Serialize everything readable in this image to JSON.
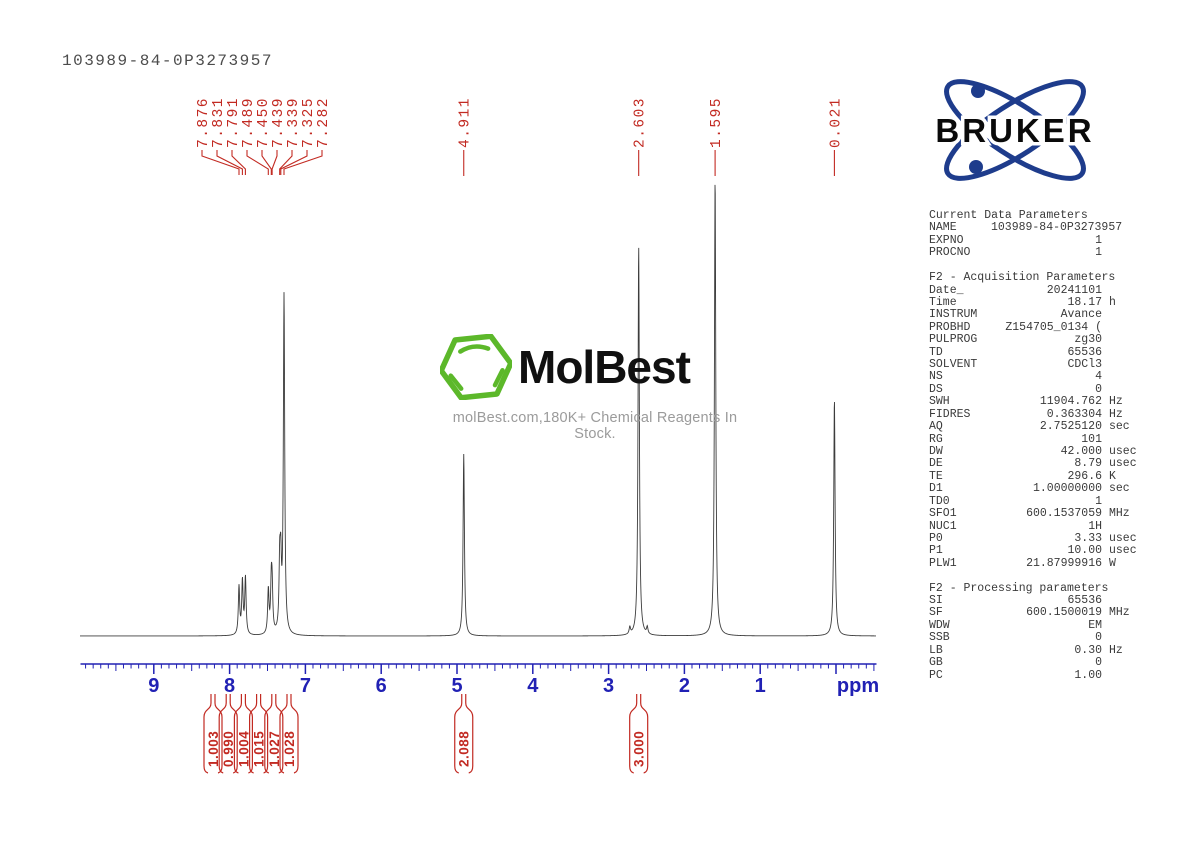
{
  "page": {
    "title": "103989-84-0P3273957"
  },
  "colors": {
    "peak_red": "#c22a22",
    "axis_blue": "#2121b4",
    "trace_gray": "#3c3c3c",
    "bruker_blue": "#1e3c8c",
    "molbest_green": "#5cb82a"
  },
  "watermark": {
    "brand": "MolBest",
    "tagline": "molBest.com,180K+ Chemical Reagents In Stock."
  },
  "bruker": {
    "label": "BRUKER"
  },
  "params": {
    "sections": [
      {
        "heading": "Current Data Parameters",
        "rows": [
          [
            "NAME",
            "103989-84-0P3273957",
            ""
          ],
          [
            "EXPNO",
            "1",
            ""
          ],
          [
            "PROCNO",
            "1",
            ""
          ]
        ]
      },
      {
        "heading": "F2 - Acquisition Parameters",
        "rows": [
          [
            "Date_",
            "20241101",
            ""
          ],
          [
            "Time",
            "18.17",
            "h"
          ],
          [
            "INSTRUM",
            "Avance",
            ""
          ],
          [
            "PROBHD",
            "Z154705_0134 (",
            ""
          ],
          [
            "PULPROG",
            "zg30",
            ""
          ],
          [
            "TD",
            "65536",
            ""
          ],
          [
            "SOLVENT",
            "CDCl3",
            ""
          ],
          [
            "NS",
            "4",
            ""
          ],
          [
            "DS",
            "0",
            ""
          ],
          [
            "SWH",
            "11904.762",
            "Hz"
          ],
          [
            "FIDRES",
            "0.363304",
            "Hz"
          ],
          [
            "AQ",
            "2.7525120",
            "sec"
          ],
          [
            "RG",
            "101",
            ""
          ],
          [
            "DW",
            "42.000",
            "usec"
          ],
          [
            "DE",
            "8.79",
            "usec"
          ],
          [
            "TE",
            "296.6",
            "K"
          ],
          [
            "D1",
            "1.00000000",
            "sec"
          ],
          [
            "TD0",
            "1",
            ""
          ],
          [
            "SFO1",
            "600.1537059",
            "MHz"
          ],
          [
            "NUC1",
            "1H",
            ""
          ],
          [
            "P0",
            "3.33",
            "usec"
          ],
          [
            "P1",
            "10.00",
            "usec"
          ],
          [
            "PLW1",
            "21.87999916",
            "W"
          ]
        ]
      },
      {
        "heading": "F2 - Processing parameters",
        "rows": [
          [
            "SI",
            "65536",
            ""
          ],
          [
            "SF",
            "600.1500019",
            "MHz"
          ],
          [
            "WDW",
            "EM",
            ""
          ],
          [
            "SSB",
            "0",
            ""
          ],
          [
            "LB",
            "0.30",
            "Hz"
          ],
          [
            "GB",
            "0",
            ""
          ],
          [
            "PC",
            "1.00",
            ""
          ]
        ]
      }
    ]
  },
  "chart_data": {
    "type": "line",
    "title": "1H NMR spectrum 103989-84-0P3273957",
    "xlabel": "ppm",
    "x_axis": {
      "major_ticks": [
        9,
        8,
        7,
        6,
        5,
        4,
        3,
        2,
        1
      ],
      "minor_tick_step": 0.1,
      "range_ppm": [
        9.97,
        -0.53
      ],
      "unit_label": "ppm"
    },
    "peaks": [
      {
        "ppm": 7.876,
        "label": "7.876",
        "rel_height": 48
      },
      {
        "ppm": 7.831,
        "label": "7.831",
        "rel_height": 53
      },
      {
        "ppm": 7.791,
        "label": "7.791",
        "rel_height": 57
      },
      {
        "ppm": 7.489,
        "label": "7.489",
        "rel_height": 44
      },
      {
        "ppm": 7.45,
        "label": "7.450",
        "rel_height": 47
      },
      {
        "ppm": 7.439,
        "label": "7.439",
        "rel_height": 40
      },
      {
        "ppm": 7.339,
        "label": "7.339",
        "rel_height": 64
      },
      {
        "ppm": 7.325,
        "label": "7.325",
        "rel_height": 60
      },
      {
        "ppm": 7.282,
        "label": "7.282",
        "rel_height": 338
      },
      {
        "ppm": 4.911,
        "label": "4.911",
        "rel_height": 182
      },
      {
        "ppm": 2.603,
        "label": "2.603",
        "rel_height": 390
      },
      {
        "ppm": 1.595,
        "label": "1.595",
        "rel_height": 458
      },
      {
        "ppm": 0.021,
        "label": "0.021",
        "rel_height": 237
      }
    ],
    "satellite_peaks": [
      {
        "ppm": 2.72,
        "rel_height": 7
      },
      {
        "ppm": 2.49,
        "rel_height": 7
      }
    ],
    "integrals": [
      {
        "value": "1.003",
        "at_ppm": 7.876
      },
      {
        "value": "0.990",
        "at_ppm": 7.831
      },
      {
        "value": "1.004",
        "at_ppm": 7.791
      },
      {
        "value": "1.015",
        "at_ppm": 7.46
      },
      {
        "value": "1.027",
        "at_ppm": 7.332
      },
      {
        "value": "1.028",
        "at_ppm": 7.282
      },
      {
        "value": "2.088",
        "at_ppm": 4.911
      },
      {
        "value": "3.000",
        "at_ppm": 2.603
      }
    ]
  }
}
